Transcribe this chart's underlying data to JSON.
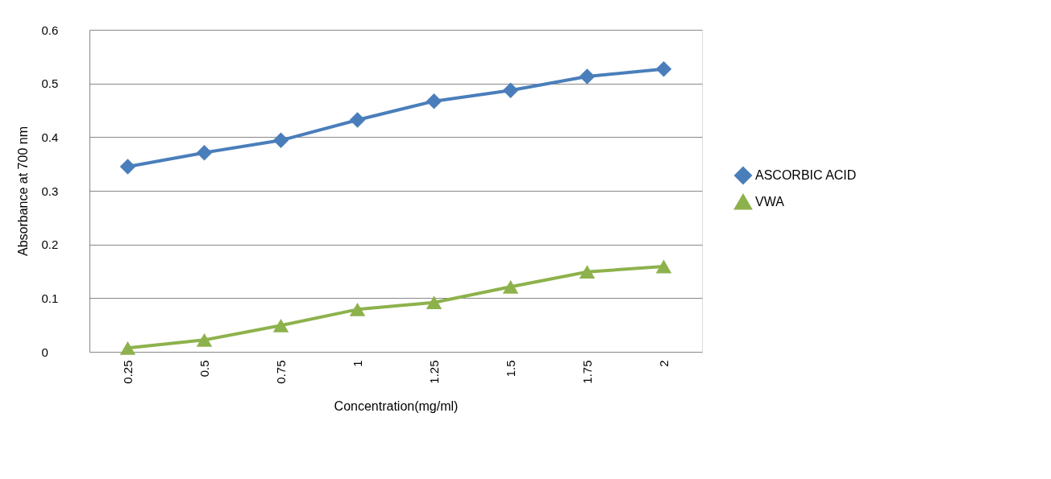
{
  "chart_data": {
    "type": "line",
    "xlabel": "Concentration(mg/ml)",
    "ylabel": "Absorbance at 700 nm",
    "categories": [
      "0.25",
      "0.5",
      "0.75",
      "1",
      "1.25",
      "1.5",
      "1.75",
      "2"
    ],
    "series": [
      {
        "name": "ASCORBIC ACID",
        "color": "#4a7ebb",
        "marker": "diamond",
        "values": [
          0.345,
          0.371,
          0.394,
          0.432,
          0.467,
          0.487,
          0.513,
          0.527
        ]
      },
      {
        "name": "VWA",
        "color": "#8db24c",
        "marker": "triangle",
        "values": [
          0.007,
          0.022,
          0.049,
          0.079,
          0.092,
          0.121,
          0.149,
          0.159
        ]
      }
    ],
    "ylim": [
      0,
      0.6
    ],
    "yticks": [
      0,
      0.1,
      0.2,
      0.3,
      0.4,
      0.5,
      0.6
    ],
    "grid": "y",
    "legend": "right"
  }
}
